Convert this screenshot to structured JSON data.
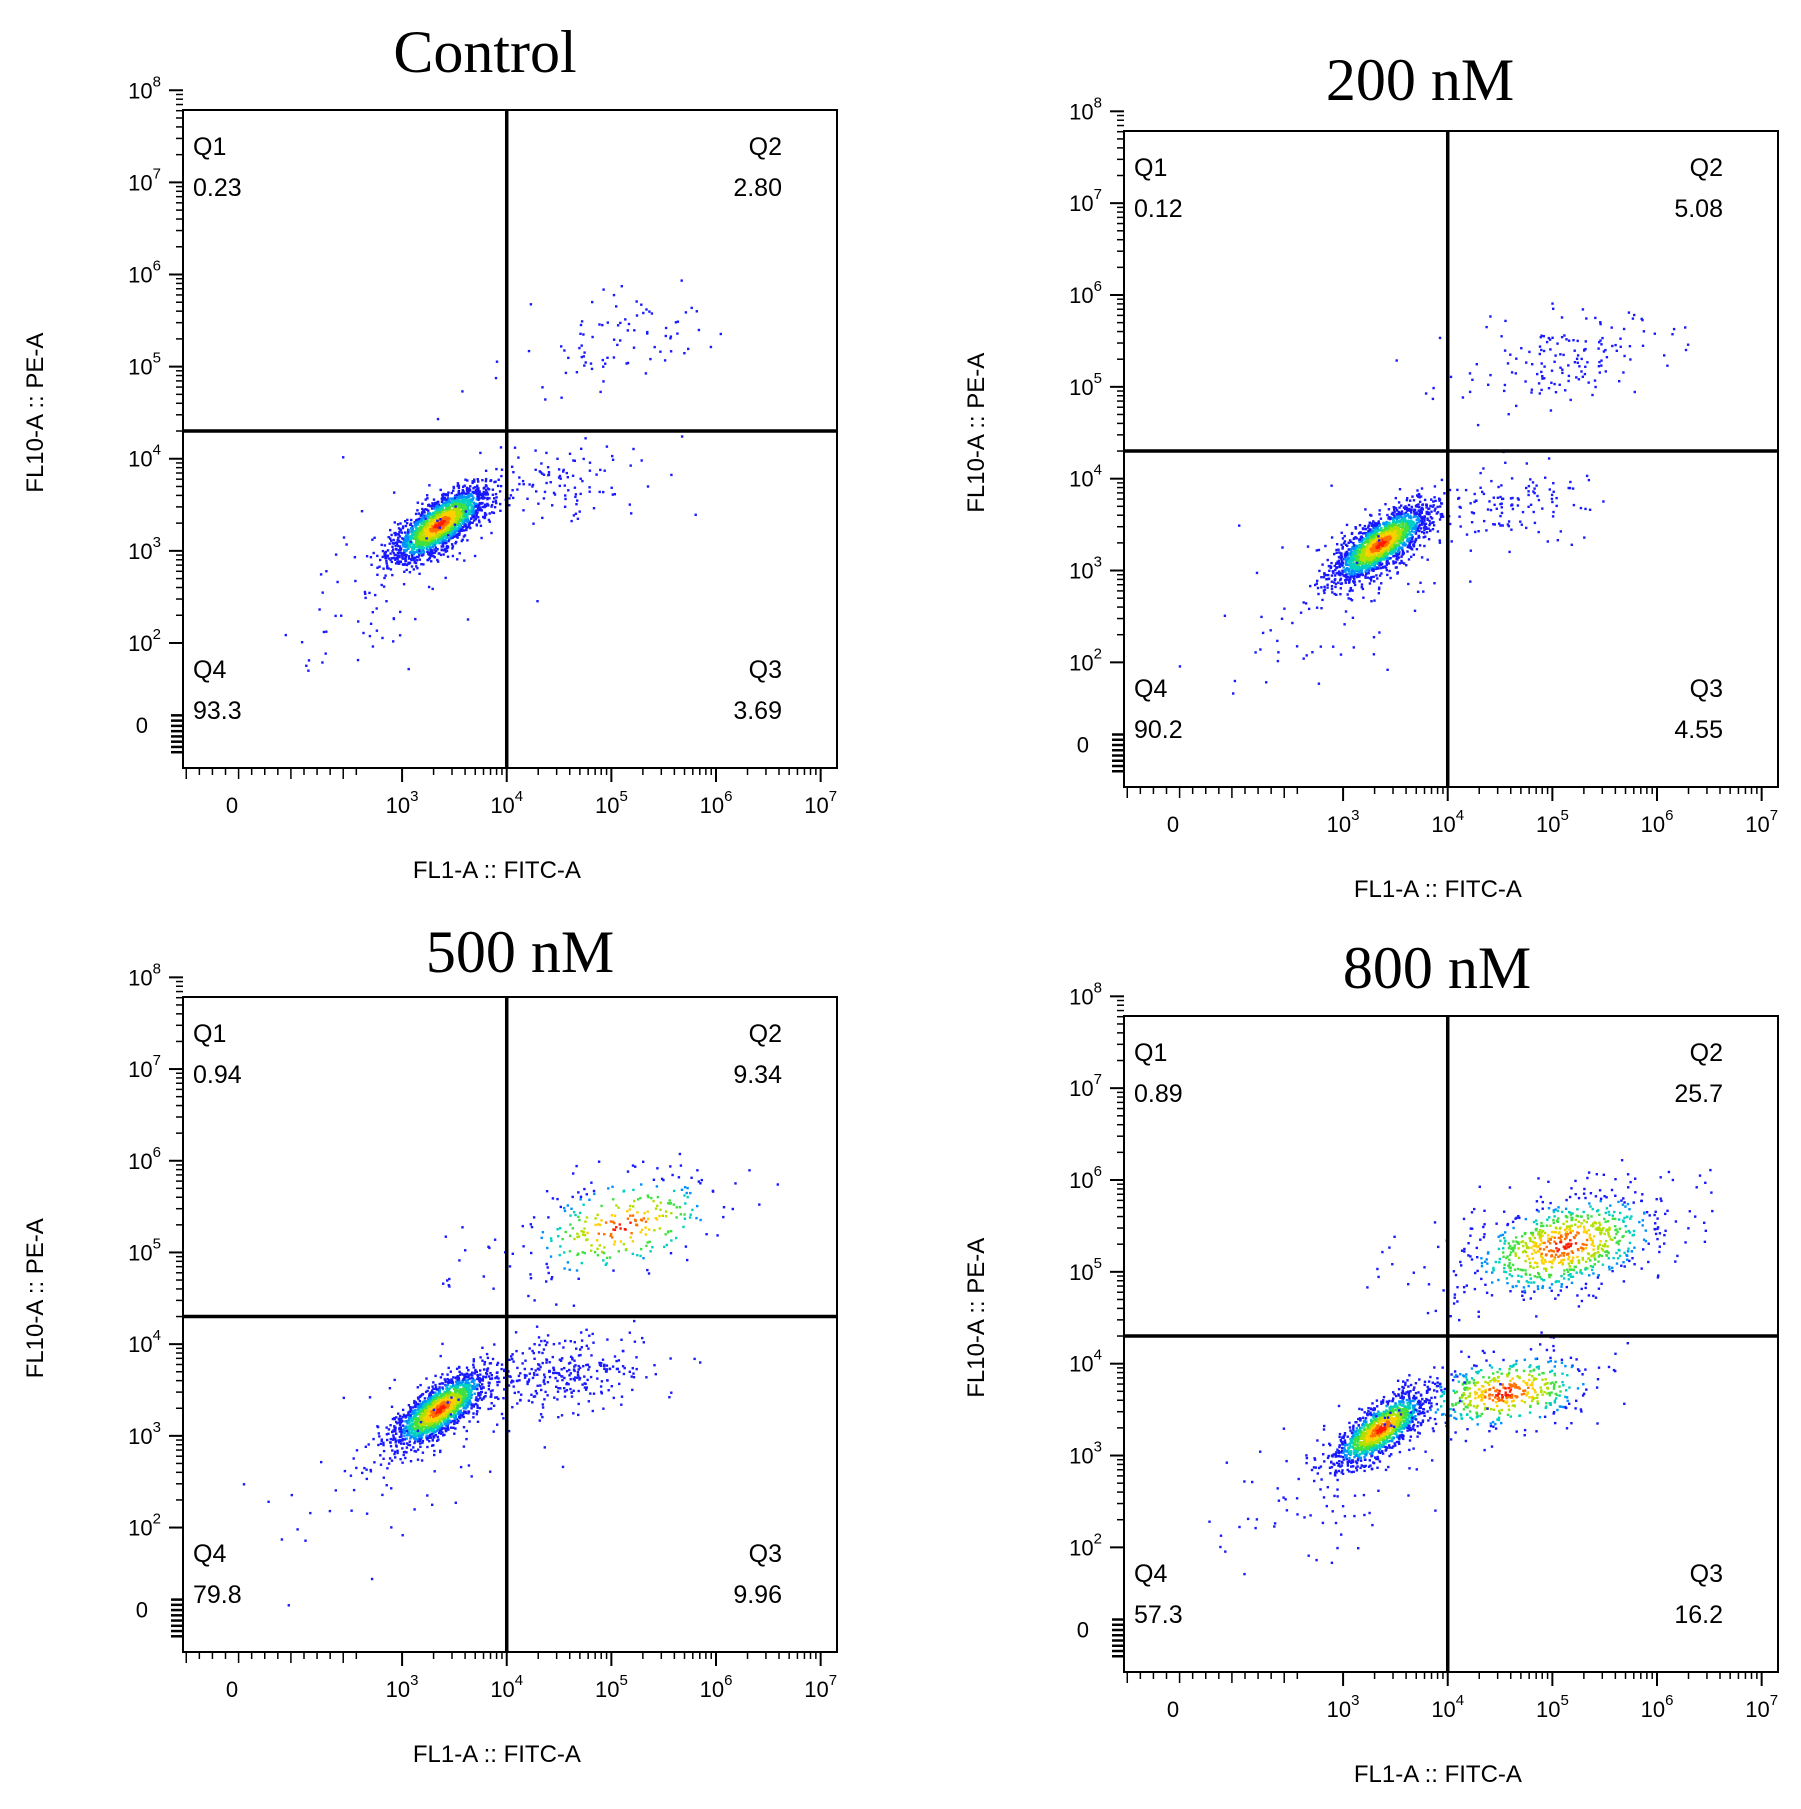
{
  "figure": {
    "background": "#ffffff",
    "colors": {
      "frame": "#000000",
      "events_low": "#1a1aff",
      "events_mid": "#00c8c8",
      "events_high": "#ff2000"
    }
  },
  "chart_data": [
    {
      "type": "scatter",
      "subtype": "flow-cytometry-quadrant-density",
      "title": "Control",
      "xlabel": "FL1-A :: FITC-A",
      "ylabel": "FL10-A :: PE-A",
      "xscale": "biexponential",
      "yscale": "biexponential",
      "xlim": [
        "-10^2",
        "10^7"
      ],
      "ylim": [
        "-10^1",
        "10^8"
      ],
      "x_ticks": [
        {
          "base": "0",
          "exp": ""
        },
        {
          "base": "10",
          "exp": "3"
        },
        {
          "base": "10",
          "exp": "4"
        },
        {
          "base": "10",
          "exp": "5"
        },
        {
          "base": "10",
          "exp": "6"
        },
        {
          "base": "10",
          "exp": "7"
        }
      ],
      "y_ticks": [
        {
          "base": "0",
          "exp": ""
        },
        {
          "base": "10",
          "exp": "2"
        },
        {
          "base": "10",
          "exp": "3"
        },
        {
          "base": "10",
          "exp": "4"
        },
        {
          "base": "10",
          "exp": "5"
        },
        {
          "base": "10",
          "exp": "6"
        },
        {
          "base": "10",
          "exp": "7"
        },
        {
          "base": "10",
          "exp": "8"
        }
      ],
      "gate": {
        "x": 10000,
        "y": 20000
      },
      "quadrants": [
        {
          "name": "Q1",
          "value": "0.23",
          "position": "top-left"
        },
        {
          "name": "Q2",
          "value": "2.80",
          "position": "top-right"
        },
        {
          "name": "Q3",
          "value": "3.69",
          "position": "bottom-right"
        },
        {
          "name": "Q4",
          "value": "93.3",
          "position": "bottom-left"
        }
      ]
    },
    {
      "type": "scatter",
      "subtype": "flow-cytometry-quadrant-density",
      "title": "200 nM",
      "xlabel": "FL1-A :: FITC-A",
      "ylabel": "FL10-A :: PE-A",
      "xscale": "biexponential",
      "yscale": "biexponential",
      "xlim": [
        "-10^2",
        "10^7"
      ],
      "ylim": [
        "-10^1",
        "10^8"
      ],
      "x_ticks": [
        {
          "base": "0",
          "exp": ""
        },
        {
          "base": "10",
          "exp": "3"
        },
        {
          "base": "10",
          "exp": "4"
        },
        {
          "base": "10",
          "exp": "5"
        },
        {
          "base": "10",
          "exp": "6"
        },
        {
          "base": "10",
          "exp": "7"
        }
      ],
      "y_ticks": [
        {
          "base": "0",
          "exp": ""
        },
        {
          "base": "10",
          "exp": "2"
        },
        {
          "base": "10",
          "exp": "3"
        },
        {
          "base": "10",
          "exp": "4"
        },
        {
          "base": "10",
          "exp": "5"
        },
        {
          "base": "10",
          "exp": "6"
        },
        {
          "base": "10",
          "exp": "7"
        },
        {
          "base": "10",
          "exp": "8"
        }
      ],
      "gate": {
        "x": 10000,
        "y": 20000
      },
      "quadrants": [
        {
          "name": "Q1",
          "value": "0.12",
          "position": "top-left"
        },
        {
          "name": "Q2",
          "value": "5.08",
          "position": "top-right"
        },
        {
          "name": "Q3",
          "value": "4.55",
          "position": "bottom-right"
        },
        {
          "name": "Q4",
          "value": "90.2",
          "position": "bottom-left"
        }
      ]
    },
    {
      "type": "scatter",
      "subtype": "flow-cytometry-quadrant-density",
      "title": "500 nM",
      "xlabel": "FL1-A :: FITC-A",
      "ylabel": "FL10-A :: PE-A",
      "xscale": "biexponential",
      "yscale": "biexponential",
      "xlim": [
        "-10^2",
        "10^7"
      ],
      "ylim": [
        "-10^1",
        "10^8"
      ],
      "x_ticks": [
        {
          "base": "0",
          "exp": ""
        },
        {
          "base": "10",
          "exp": "3"
        },
        {
          "base": "10",
          "exp": "4"
        },
        {
          "base": "10",
          "exp": "5"
        },
        {
          "base": "10",
          "exp": "6"
        },
        {
          "base": "10",
          "exp": "7"
        }
      ],
      "y_ticks": [
        {
          "base": "0",
          "exp": ""
        },
        {
          "base": "10",
          "exp": "2"
        },
        {
          "base": "10",
          "exp": "3"
        },
        {
          "base": "10",
          "exp": "4"
        },
        {
          "base": "10",
          "exp": "5"
        },
        {
          "base": "10",
          "exp": "6"
        },
        {
          "base": "10",
          "exp": "7"
        },
        {
          "base": "10",
          "exp": "8"
        }
      ],
      "gate": {
        "x": 10000,
        "y": 20000
      },
      "quadrants": [
        {
          "name": "Q1",
          "value": "0.94",
          "position": "top-left"
        },
        {
          "name": "Q2",
          "value": "9.34",
          "position": "top-right"
        },
        {
          "name": "Q3",
          "value": "9.96",
          "position": "bottom-right"
        },
        {
          "name": "Q4",
          "value": "79.8",
          "position": "bottom-left"
        }
      ]
    },
    {
      "type": "scatter",
      "subtype": "flow-cytometry-quadrant-density",
      "title": "800 nM",
      "xlabel": "FL1-A :: FITC-A",
      "ylabel": "FL10-A :: PE-A",
      "xscale": "biexponential",
      "yscale": "biexponential",
      "xlim": [
        "-10^2",
        "10^7"
      ],
      "ylim": [
        "-10^1",
        "10^8"
      ],
      "x_ticks": [
        {
          "base": "0",
          "exp": ""
        },
        {
          "base": "10",
          "exp": "3"
        },
        {
          "base": "10",
          "exp": "4"
        },
        {
          "base": "10",
          "exp": "5"
        },
        {
          "base": "10",
          "exp": "6"
        },
        {
          "base": "10",
          "exp": "7"
        }
      ],
      "y_ticks": [
        {
          "base": "0",
          "exp": ""
        },
        {
          "base": "10",
          "exp": "2"
        },
        {
          "base": "10",
          "exp": "3"
        },
        {
          "base": "10",
          "exp": "4"
        },
        {
          "base": "10",
          "exp": "5"
        },
        {
          "base": "10",
          "exp": "6"
        },
        {
          "base": "10",
          "exp": "7"
        },
        {
          "base": "10",
          "exp": "8"
        }
      ],
      "gate": {
        "x": 10000,
        "y": 20000
      },
      "quadrants": [
        {
          "name": "Q1",
          "value": "0.89",
          "position": "top-left"
        },
        {
          "name": "Q2",
          "value": "25.7",
          "position": "top-right"
        },
        {
          "name": "Q3",
          "value": "16.2",
          "position": "bottom-right"
        },
        {
          "name": "Q4",
          "value": "57.3",
          "position": "bottom-left"
        }
      ]
    }
  ]
}
